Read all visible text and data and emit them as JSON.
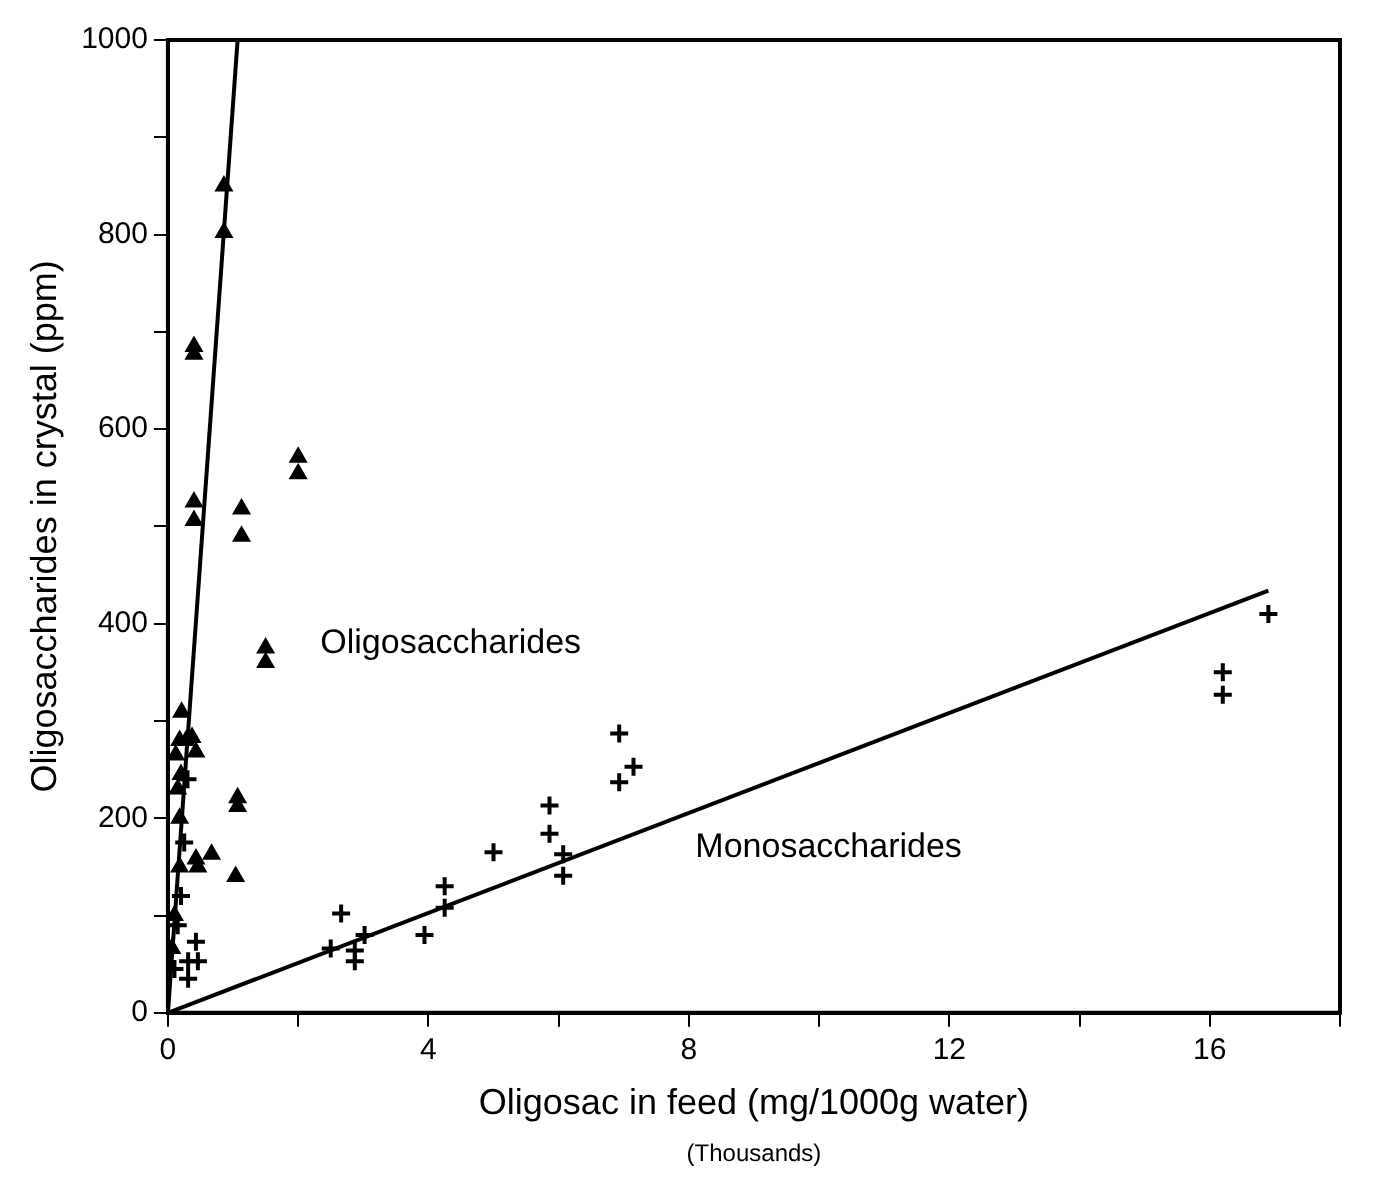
{
  "chart_data": {
    "type": "scatter",
    "xlabel": "Oligosac in feed (mg/1000g water)",
    "ylabel": "Oligosaccharides in crystal (ppm)",
    "annotations": [
      "(Thousands)"
    ],
    "xlim": [
      0,
      18
    ],
    "ylim": [
      0,
      1000
    ],
    "xticks": [
      0,
      {
        "value": 2,
        "label": null
      },
      4,
      {
        "value": 6,
        "label": null
      },
      8,
      {
        "value": 10,
        "label": null
      },
      12,
      {
        "value": 14,
        "label": null
      },
      16,
      {
        "value": 18,
        "label": null
      }
    ],
    "yticks": [
      0,
      {
        "value": 100,
        "label": null
      },
      200,
      {
        "value": 300,
        "label": null
      },
      400,
      {
        "value": 500,
        "label": null
      },
      600,
      {
        "value": 700,
        "label": null
      },
      800,
      {
        "value": 900,
        "label": null
      },
      1000
    ],
    "grid": false,
    "legend": false,
    "series": [
      {
        "name": "Oligosaccharides",
        "marker": "triangle",
        "color": "#000000",
        "x": [
          0.86,
          0.86,
          0.4,
          0.4,
          0.4,
          0.4,
          1.13,
          1.13,
          2.0,
          2.0,
          1.5,
          1.5,
          1.07,
          1.07,
          1.04,
          0.67,
          0.46,
          0.43,
          0.21,
          0.37,
          0.28,
          0.43,
          0.18,
          0.06,
          0.1,
          0.18,
          0.18,
          0.2,
          0.12,
          0.15
        ],
        "values": [
          850,
          802,
          685,
          677,
          525,
          506,
          518,
          490,
          571,
          554,
          375,
          360,
          221,
          212,
          140,
          163,
          150,
          158,
          309,
          283,
          280,
          268,
          280,
          66,
          100,
          150,
          200,
          245,
          265,
          230
        ]
      },
      {
        "name": "Monosaccharides",
        "marker": "cross",
        "color": "#000000",
        "x": [
          0.43,
          0.31,
          0.46,
          0.31,
          0.1,
          0.15,
          0.2,
          0.25,
          0.3,
          0.35,
          2.66,
          2.5,
          2.87,
          2.87,
          3.02,
          3.94,
          4.25,
          4.25,
          5.0,
          5.86,
          5.86,
          6.07,
          6.07,
          6.93,
          6.93,
          7.15,
          16.2,
          16.2,
          16.9
        ],
        "values": [
          73,
          53,
          53,
          35,
          45,
          90,
          120,
          175,
          240,
          null,
          102,
          66,
          64,
          53,
          80,
          80,
          130,
          108,
          165,
          213,
          184,
          163,
          141,
          287,
          237,
          253,
          350,
          327,
          410
        ]
      },
      {
        "type": "line",
        "marker": "none",
        "color": "#000000",
        "x": [
          0,
          1.07
        ],
        "values": [
          0,
          1000
        ]
      },
      {
        "type": "line",
        "marker": "none",
        "color": "#000000",
        "x": [
          0,
          16.9
        ],
        "values": [
          0,
          434
        ]
      }
    ]
  }
}
